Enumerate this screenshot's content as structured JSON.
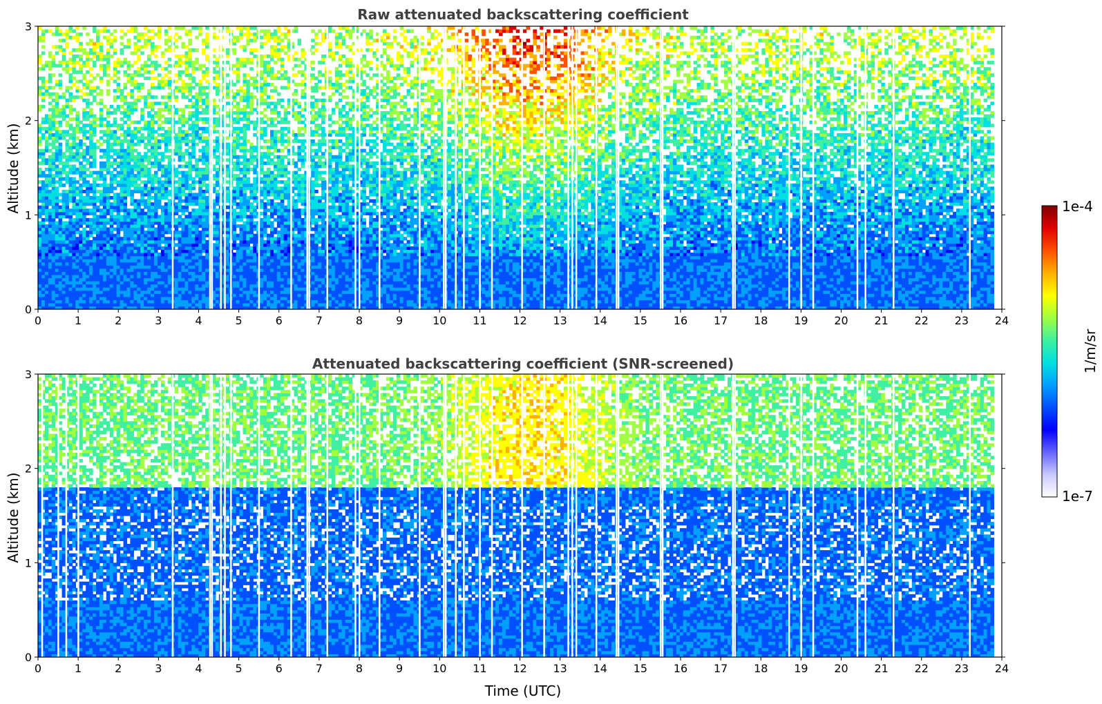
{
  "colorbar": {
    "max_label": "1e-4",
    "min_label": "1e-7",
    "unit_label": "1/m/sr",
    "colors": [
      "#ffffff",
      "#c8c8ff",
      "#6464ff",
      "#0000ff",
      "#0050ff",
      "#00a0ff",
      "#00e0e0",
      "#40f0a0",
      "#a0ff40",
      "#ffff00",
      "#ffb000",
      "#ff5000",
      "#e00000",
      "#800000"
    ]
  },
  "chart_data": [
    {
      "type": "heatmap",
      "title": "Raw attenuated backscattering coefficient",
      "xlabel": "",
      "ylabel": "Altitude (km)",
      "xlim": [
        0,
        24
      ],
      "ylim": [
        0,
        3
      ],
      "x_ticks": [
        "0",
        "1",
        "2",
        "3",
        "4",
        "5",
        "6",
        "7",
        "8",
        "9",
        "10",
        "11",
        "12",
        "13",
        "14",
        "15",
        "16",
        "17",
        "18",
        "19",
        "20",
        "21",
        "22",
        "23",
        "24"
      ],
      "y_ticks": [
        "0",
        "1",
        "2",
        "3"
      ],
      "colorscale": "log",
      "clim": [
        1e-07,
        0.0001
      ],
      "data_end_x": 23.8,
      "gap_times": [
        3.35,
        4.28,
        4.33,
        4.55,
        4.65,
        4.8,
        5.5,
        6.3,
        6.7,
        6.75,
        7.2,
        7.9,
        8.0,
        8.5,
        9.5,
        10.1,
        10.15,
        10.4,
        10.6,
        11.0,
        11.3,
        12.05,
        12.6,
        13.2,
        13.3,
        13.4,
        13.9,
        14.4,
        14.45,
        15.5,
        15.55,
        17.3,
        17.35,
        18.7,
        19.0,
        19.3,
        20.4,
        20.6,
        21.3,
        23.2
      ],
      "layers": {
        "boundary_layer_top_km": 0.55,
        "noisy_above_km": 0.9
      }
    },
    {
      "type": "heatmap",
      "title": "Attenuated backscattering coefficient (SNR-screened)",
      "xlabel": "Time (UTC)",
      "ylabel": "Altitude (km)",
      "xlim": [
        0,
        24
      ],
      "ylim": [
        0,
        3
      ],
      "x_ticks": [
        "0",
        "1",
        "2",
        "3",
        "4",
        "5",
        "6",
        "7",
        "8",
        "9",
        "10",
        "11",
        "12",
        "13",
        "14",
        "15",
        "16",
        "17",
        "18",
        "19",
        "20",
        "21",
        "22",
        "23",
        "24"
      ],
      "y_ticks": [
        "0",
        "1",
        "2",
        "3"
      ],
      "colorscale": "log",
      "clim": [
        1e-07,
        0.0001
      ],
      "data_end_x": 23.8,
      "gap_times": [
        0.1,
        0.5,
        0.7,
        1.0,
        3.35,
        4.28,
        4.33,
        4.55,
        4.65,
        4.8,
        5.5,
        6.3,
        6.7,
        6.75,
        7.2,
        7.9,
        8.0,
        8.5,
        9.5,
        10.1,
        10.15,
        10.4,
        10.6,
        11.0,
        11.3,
        12.05,
        12.6,
        13.2,
        13.3,
        13.4,
        13.9,
        14.4,
        14.45,
        15.5,
        15.55,
        17.3,
        17.35,
        18.7,
        19.0,
        19.3,
        20.4,
        20.6,
        21.3,
        23.2
      ],
      "layers": {
        "boundary_layer_top_km": 0.6,
        "aerosol_layer_top_km": 1.8
      }
    }
  ]
}
